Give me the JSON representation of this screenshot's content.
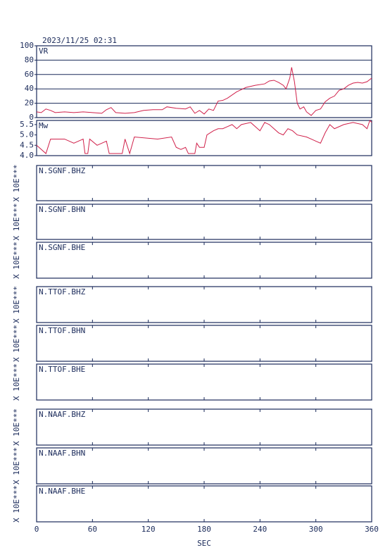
{
  "header": {
    "timestamp": "2023/11/25 02:31"
  },
  "chart_data": [
    {
      "type": "line",
      "label": "VR",
      "color": "#d0204a",
      "x": [
        0,
        5,
        10,
        15,
        20,
        30,
        40,
        50,
        60,
        70,
        75,
        80,
        85,
        95,
        105,
        115,
        125,
        135,
        140,
        150,
        160,
        165,
        170,
        175,
        180,
        185,
        190,
        195,
        200,
        205,
        215,
        225,
        235,
        245,
        250,
        255,
        260,
        265,
        268,
        272,
        274,
        277,
        280,
        283,
        287,
        290,
        295,
        300,
        305,
        310,
        315,
        320,
        325,
        330,
        335,
        340,
        345,
        350,
        355,
        360
      ],
      "values": [
        8,
        7,
        12,
        10,
        7,
        8,
        7,
        8,
        7,
        6,
        11,
        14,
        7,
        6,
        7,
        10,
        11,
        11,
        15,
        13,
        12,
        15,
        6,
        10,
        5,
        12,
        10,
        23,
        24,
        27,
        36,
        42,
        45,
        47,
        51,
        52,
        49,
        45,
        40,
        55,
        70,
        50,
        20,
        12,
        15,
        8,
        3,
        10,
        12,
        22,
        27,
        30,
        38,
        40,
        45,
        48,
        49,
        48,
        50,
        55
      ],
      "xlim": [
        0,
        360
      ],
      "ylim": [
        0,
        100
      ],
      "yticks": [
        0,
        20,
        40,
        60,
        80,
        100
      ],
      "grid": true
    },
    {
      "type": "line",
      "label": "Mw",
      "color": "#d0204a",
      "x": [
        0,
        5,
        10,
        15,
        30,
        40,
        50,
        52,
        55,
        57,
        65,
        75,
        78,
        92,
        95,
        100,
        105,
        130,
        145,
        150,
        155,
        160,
        163,
        170,
        172,
        175,
        180,
        183,
        190,
        195,
        200,
        205,
        210,
        215,
        220,
        230,
        240,
        245,
        250,
        255,
        260,
        265,
        270,
        275,
        280,
        290,
        295,
        300,
        305,
        310,
        315,
        320,
        330,
        340,
        350,
        355,
        358,
        360
      ],
      "values": [
        4.5,
        4.3,
        4.1,
        4.8,
        4.8,
        4.6,
        4.8,
        4.1,
        4.1,
        4.8,
        4.5,
        4.7,
        4.1,
        4.1,
        4.8,
        4.1,
        4.9,
        4.8,
        4.9,
        4.4,
        4.3,
        4.4,
        4.1,
        4.1,
        4.6,
        4.4,
        4.4,
        5.0,
        5.2,
        5.3,
        5.3,
        5.4,
        5.5,
        5.3,
        5.5,
        5.6,
        5.2,
        5.6,
        5.5,
        5.3,
        5.1,
        5.0,
        5.3,
        5.2,
        5.0,
        4.9,
        4.8,
        4.7,
        4.6,
        5.1,
        5.5,
        5.3,
        5.5,
        5.6,
        5.5,
        5.3,
        5.7,
        5.6
      ],
      "xlim": [
        0,
        360
      ],
      "ylim": [
        4.0,
        5.7
      ],
      "yticks": [
        {
          "value": 4.0,
          "label": "4.0"
        },
        4.5,
        {
          "value": 5.0,
          "label": "5.0"
        },
        5.5
      ],
      "grid": false
    },
    {
      "type": "waveform",
      "xlim": [
        0,
        360
      ],
      "xticks": [
        0,
        60,
        120,
        180,
        240,
        300,
        360
      ],
      "xlabel": "SEC",
      "panels": [
        {
          "name": "N.SGNF.BHZ",
          "y_label": "X 10E***"
        },
        {
          "name": "N.SGNF.BHN",
          "y_label": "X 10E***"
        },
        {
          "name": "N.SGNF.BHE",
          "y_label": "X 10E***"
        },
        {
          "name": "N.TTOF.BHZ",
          "y_label": "X 10E***"
        },
        {
          "name": "N.TTOF.BHN",
          "y_label": "X 10E***"
        },
        {
          "name": "N.TTOF.BHE",
          "y_label": "X 10E***"
        },
        {
          "name": "N.NAAF.BHZ",
          "y_label": "X 10E***"
        },
        {
          "name": "N.NAAF.BHN",
          "y_label": "X 10E***"
        },
        {
          "name": "N.NAAF.BHE",
          "y_label": "X 10E***"
        }
      ]
    }
  ]
}
